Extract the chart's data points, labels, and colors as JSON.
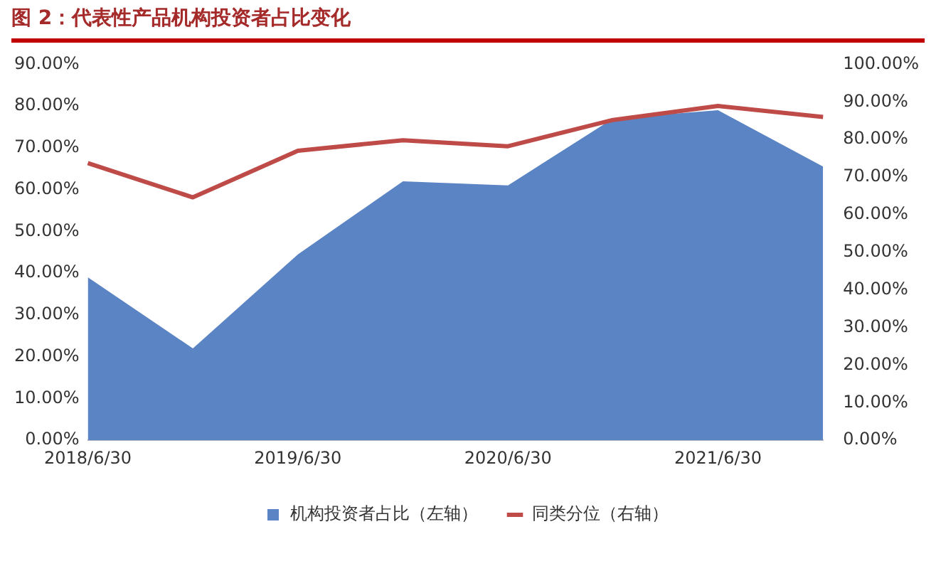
{
  "chart_data": {
    "type": "area",
    "title": "图 2：代表性产品机构投资者占比变化",
    "categories": [
      "2018/6/30",
      null,
      "2019/6/30",
      null,
      "2020/6/30",
      null,
      "2021/6/30",
      null
    ],
    "series": [
      {
        "name": "机构投资者占比（左轴）",
        "type": "area",
        "color": "#5b84c4",
        "values": [
          39,
          22,
          44.5,
          62,
          61,
          77,
          79,
          65.5
        ]
      },
      {
        "name": "同类分位（右轴）",
        "type": "line",
        "axis": "y2",
        "color": "#be4b48",
        "values": [
          73.7,
          64.6,
          77,
          79.8,
          78.2,
          85.2,
          88.9,
          86
        ]
      }
    ],
    "ylim": [
      0,
      90
    ],
    "yticks": [
      {
        "value": 0,
        "label": "0.00%"
      },
      {
        "value": 10,
        "label": "10.00%"
      },
      {
        "value": 20,
        "label": "20.00%"
      },
      {
        "value": 30,
        "label": "30.00%"
      },
      {
        "value": 40,
        "label": "40.00%"
      },
      {
        "value": 50,
        "label": "50.00%"
      },
      {
        "value": 60,
        "label": "60.00%"
      },
      {
        "value": 70,
        "label": "70.00%"
      },
      {
        "value": 80,
        "label": "80.00%"
      },
      {
        "value": 90,
        "label": "90.00%"
      }
    ],
    "y2lim": [
      0,
      100
    ],
    "y2ticks": [
      {
        "value": 0,
        "label": "0.00%"
      },
      {
        "value": 10,
        "label": "10.00%"
      },
      {
        "value": 20,
        "label": "20.00%"
      },
      {
        "value": 30,
        "label": "30.00%"
      },
      {
        "value": 40,
        "label": "40.00%"
      },
      {
        "value": 50,
        "label": "50.00%"
      },
      {
        "value": 60,
        "label": "60.00%"
      },
      {
        "value": 70,
        "label": "70.00%"
      },
      {
        "value": 80,
        "label": "80.00%"
      },
      {
        "value": 90,
        "label": "90.00%"
      },
      {
        "value": 100,
        "label": "100.00%"
      }
    ],
    "grid": false,
    "legend": "bottom"
  }
}
